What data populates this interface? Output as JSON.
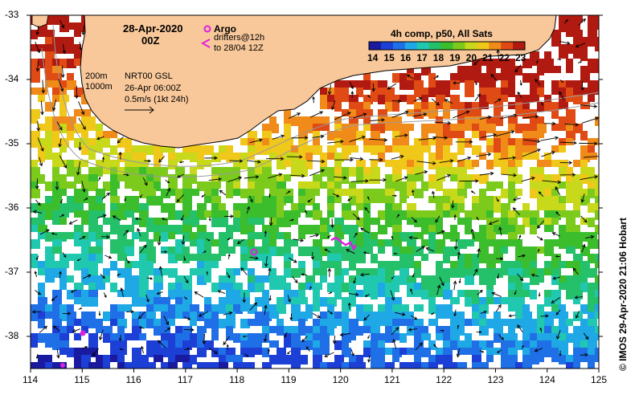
{
  "map": {
    "title_date": "28-Apr-2020",
    "title_time": "00Z",
    "legend_title": "4h comp, p50, All Sats",
    "colorbar_ticks": [
      "14",
      "15",
      "16",
      "17",
      "18",
      "19",
      "20",
      "21",
      "22",
      "23"
    ],
    "colorbar_colors": [
      "#1a1aa0",
      "#1c3fd6",
      "#1f6fe6",
      "#1fa8e6",
      "#21c8b0",
      "#24c06a",
      "#3cbd2c",
      "#7ccb1c",
      "#c8d81a",
      "#f0c81a",
      "#f08a18",
      "#e04a14",
      "#b01a10"
    ],
    "argo_label": "Argo",
    "drifters_label": "drifters@12h",
    "drifters_label2": "to 28/04 12Z",
    "isobath_200": "200m",
    "isobath_1000": "1000m",
    "gsl_label": "NRT00 GSL",
    "gsl_date": "26-Apr 06:00Z",
    "scale_label": "0.5m/s (1kt 24h)",
    "credit": "© IMOS 29-Apr-2020 21:06 Hobart",
    "lon_ticks": [
      "114",
      "115",
      "116",
      "117",
      "118",
      "119",
      "120",
      "121",
      "122",
      "123",
      "124",
      "125"
    ],
    "lat_ticks": [
      "-33",
      "-34",
      "-35",
      "-36",
      "-37",
      "-38"
    ],
    "land_color": "#f8c89a",
    "argo_color": "#e020e0"
  }
}
